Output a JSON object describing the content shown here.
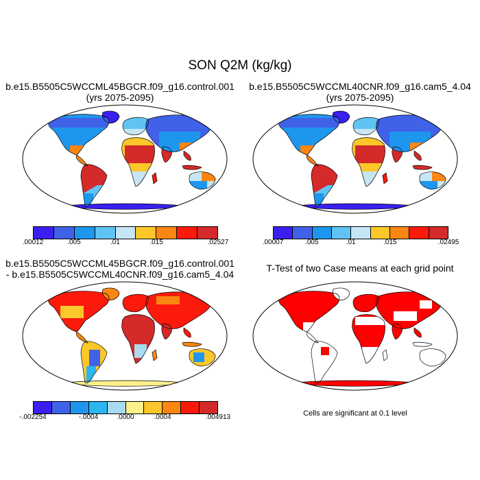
{
  "figure_title": "SON Q2M (kg/kg)",
  "panels": [
    {
      "id": "case1",
      "title_line1": "b.e15.B5505C5WCCML45BGCR.f09_g16.control.001",
      "title_line2": "(yrs 2075-2095)",
      "colorbar": {
        "colors": [
          "#3a1ff0",
          "#3f62e8",
          "#1e96ee",
          "#5fc4f3",
          "#c6e6f3",
          "#fbc72a",
          "#fb8612",
          "#fb1a0c",
          "#d42a2a"
        ],
        "tick_labels": [
          ".00012",
          ".005",
          ".01",
          ".015",
          ".02527"
        ]
      }
    },
    {
      "id": "case2",
      "title_line1": "b.e15.B5505C5WCCML40CNR.f09_g16.cam5_4.04",
      "title_line2": "(yrs 2075-2095)",
      "colorbar": {
        "colors": [
          "#3a1ff0",
          "#3f62e8",
          "#1e96ee",
          "#5fc4f3",
          "#c6e6f3",
          "#fbc72a",
          "#fb8612",
          "#fb1a0c",
          "#d42a2a"
        ],
        "tick_labels": [
          ".00007",
          ".005",
          ".01",
          ".015",
          ".02495"
        ]
      }
    },
    {
      "id": "difference",
      "title_line1": "b.e15.B5505C5WCCML45BGCR.f09_g16.control.001",
      "title_line2": "- b.e15.B5505C5WCCML40CNR.f09_g16.cam5_4.04",
      "colorbar": {
        "colors": [
          "#3a1ff0",
          "#3f62e8",
          "#1e96ee",
          "#2bb6f2",
          "#a9dbf0",
          "#fdf08a",
          "#fbc72a",
          "#fb8612",
          "#fb1a0c",
          "#d42a2a"
        ],
        "tick_labels": [
          "-.002254",
          "-.0004",
          ".0000",
          ".0004",
          ".004913"
        ]
      }
    },
    {
      "id": "ttest",
      "title_line1": "T-Test of two Case means at each grid point",
      "note": "Cells are significant at 0.1 level",
      "significance_color": "#ff0000"
    }
  ]
}
